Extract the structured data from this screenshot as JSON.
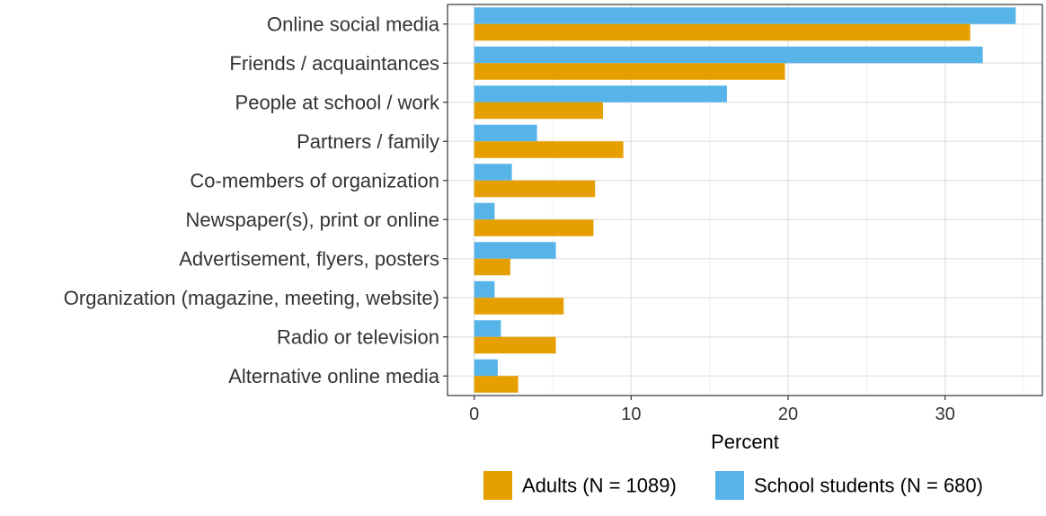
{
  "chart_data": {
    "type": "bar",
    "orientation": "horizontal",
    "title": "",
    "xlabel": "Percent",
    "ylabel": "",
    "xlim": [
      -1.7,
      36.2
    ],
    "xticks": [
      0,
      10,
      20,
      30
    ],
    "grid": true,
    "legend_position": "bottom-right",
    "categories": [
      "Online social media",
      "Friends / acquaintances",
      "People at school / work",
      "Partners / family",
      "Co-members of organization",
      "Newspaper(s), print or online",
      "Advertisement, flyers, posters",
      "Organization (magazine, meeting, website)",
      "Radio or television",
      "Alternative online media"
    ],
    "series": [
      {
        "name": "Adults (N = 1089)",
        "color": "#E69F00",
        "values": [
          31.6,
          19.8,
          8.2,
          9.5,
          7.7,
          7.6,
          2.3,
          5.7,
          5.2,
          2.8
        ]
      },
      {
        "name": "School students (N = 680)",
        "color": "#56B4E9",
        "values": [
          34.5,
          32.4,
          16.1,
          4.0,
          2.4,
          1.3,
          5.2,
          1.3,
          1.7,
          1.5
        ]
      }
    ]
  }
}
